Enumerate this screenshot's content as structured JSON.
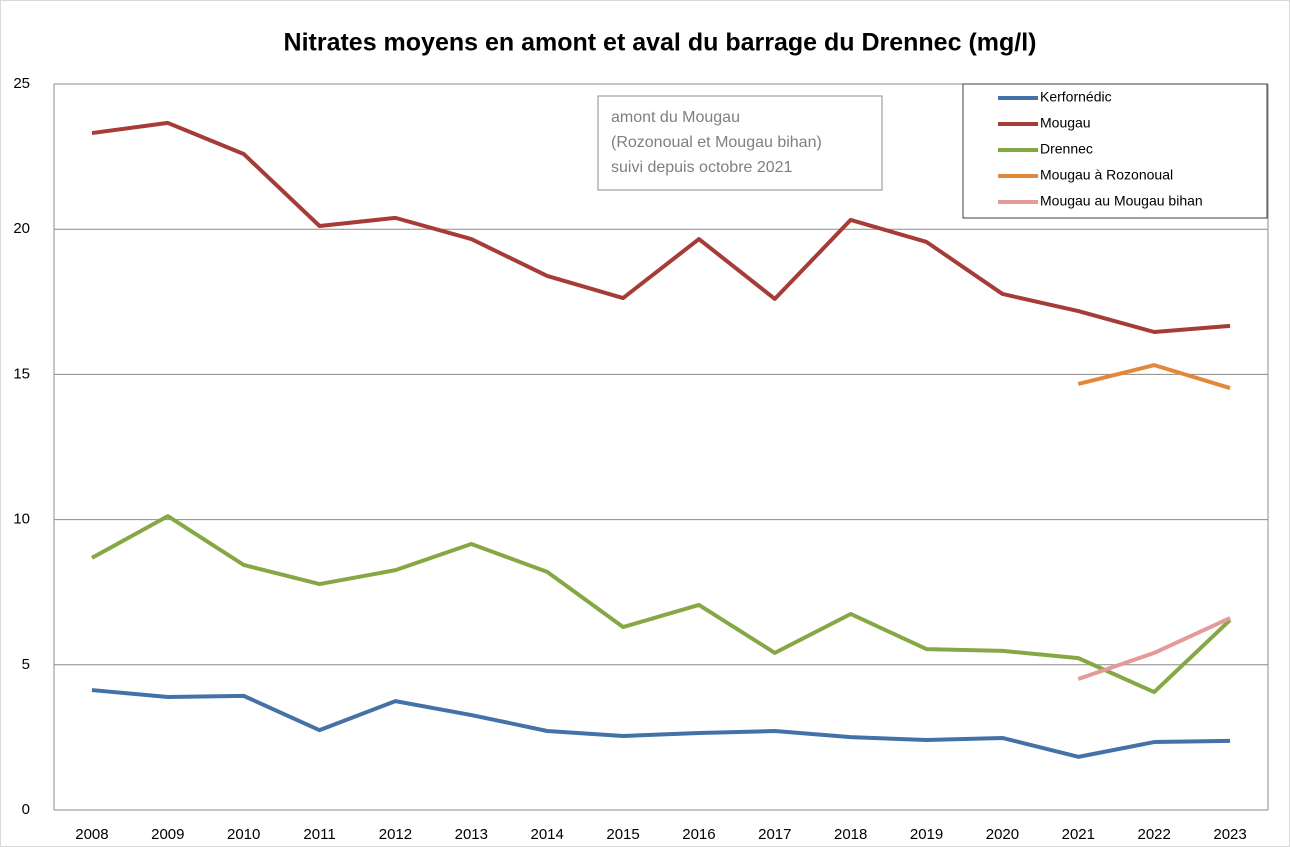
{
  "chart_data": {
    "type": "line",
    "title": "Nitrates moyens en amont et aval du barrage du Drennec (mg/l)",
    "annotation": [
      "amont du Mougau",
      "(Rozonoual et Mougau bihan)",
      "suivi depuis octobre 2021"
    ],
    "categories": [
      "2008",
      "2009",
      "2010",
      "2011",
      "2012",
      "2013",
      "2014",
      "2015",
      "2016",
      "2017",
      "2018",
      "2019",
      "2020",
      "2021",
      "2022",
      "2023"
    ],
    "series": [
      {
        "name": "Kerfornédic",
        "color": "#4472a8",
        "values": [
          4.13,
          3.89,
          3.93,
          2.75,
          3.75,
          3.27,
          2.72,
          2.55,
          2.65,
          2.72,
          2.51,
          2.41,
          2.48,
          1.83,
          2.34,
          2.38
        ]
      },
      {
        "name": "Mougau",
        "color": "#a63c38",
        "values": [
          23.31,
          23.66,
          22.59,
          20.11,
          20.39,
          19.66,
          18.39,
          17.63,
          19.66,
          17.6,
          20.32,
          19.56,
          17.77,
          17.18,
          16.46,
          16.67
        ]
      },
      {
        "name": "Drennec",
        "color": "#86a844",
        "values": [
          8.68,
          10.12,
          8.44,
          7.78,
          8.26,
          9.16,
          8.2,
          6.3,
          7.06,
          5.41,
          6.75,
          5.54,
          5.48,
          5.23,
          4.06,
          6.54
        ]
      },
      {
        "name": "Mougau à Rozonoual",
        "color": "#e3873a",
        "values": [
          null,
          null,
          null,
          null,
          null,
          null,
          null,
          null,
          null,
          null,
          null,
          null,
          null,
          14.67,
          15.32,
          14.53
        ]
      },
      {
        "name": "Mougau au Mougau bihan",
        "color": "#e39a98",
        "values": [
          null,
          null,
          null,
          null,
          null,
          null,
          null,
          null,
          null,
          null,
          null,
          null,
          null,
          4.51,
          5.41,
          6.61
        ]
      }
    ],
    "ylim": [
      0,
      25
    ],
    "yticks": [
      0,
      5,
      10,
      15,
      20,
      25
    ],
    "grid": true,
    "legend": "top-right"
  }
}
